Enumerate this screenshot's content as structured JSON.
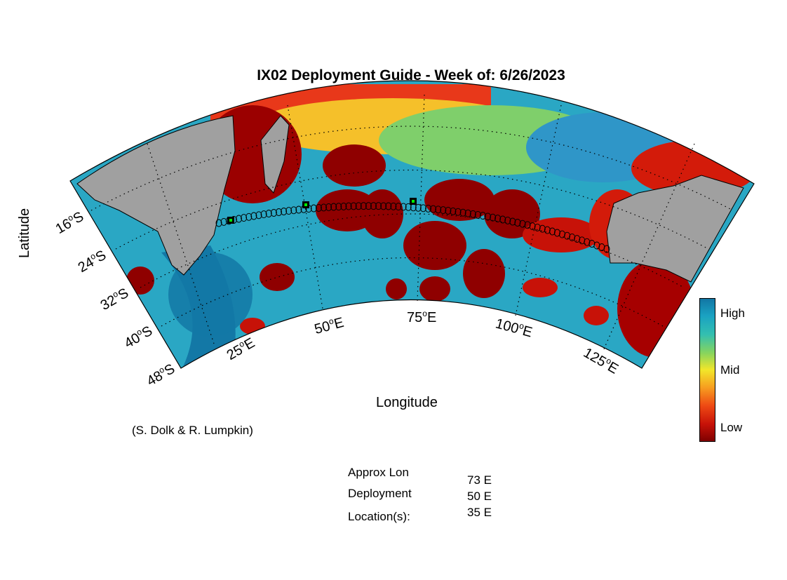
{
  "title": "IX02 Deployment Guide - Week of: 6/26/2023",
  "xlabel": "Longitude",
  "ylabel": "Latitude",
  "lon_ticks": [
    {
      "value": "25",
      "dir": "E"
    },
    {
      "value": "50",
      "dir": "E"
    },
    {
      "value": "75",
      "dir": "E"
    },
    {
      "value": "100",
      "dir": "E"
    },
    {
      "value": "125",
      "dir": "E"
    }
  ],
  "lat_ticks": [
    {
      "value": "16",
      "dir": "S"
    },
    {
      "value": "24",
      "dir": "S"
    },
    {
      "value": "32",
      "dir": "S"
    },
    {
      "value": "40",
      "dir": "S"
    },
    {
      "value": "48",
      "dir": "S"
    }
  ],
  "credit": "(S. Dolk & R. Lumpkin)",
  "colorbar": {
    "labels": {
      "high": "High",
      "mid": "Mid",
      "low": "Low"
    },
    "colors": [
      "#1276a4",
      "#33bfb0",
      "#86d45e",
      "#f2e62a",
      "#f7a020",
      "#ee4a14",
      "#c71208",
      "#7e0000"
    ]
  },
  "deployment": {
    "label_line1": "Approx Lon",
    "label_line2": "Deployment",
    "label_line3": "Location(s):",
    "values": [
      "73 E",
      "50 E",
      "35 E"
    ],
    "marker_color": "#00ff00"
  },
  "land_color": "#a0a0a0",
  "route": {
    "marker": "open circle",
    "color": "#000000"
  }
}
